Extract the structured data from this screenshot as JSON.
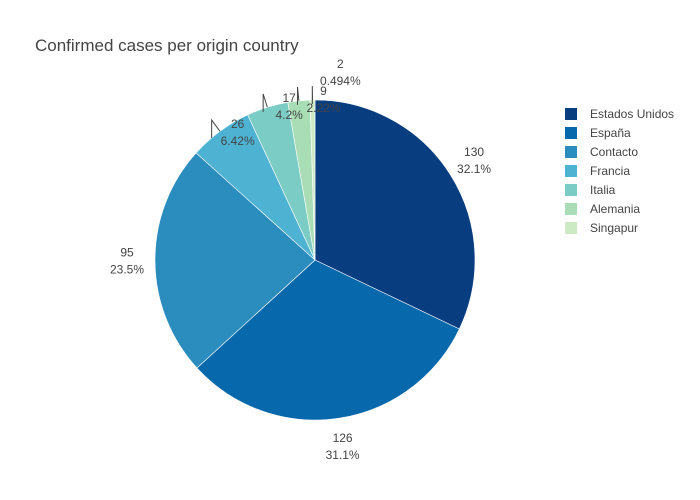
{
  "chart_data": {
    "type": "pie",
    "title": "Confirmed cases per origin country",
    "categories": [
      "Estados Unidos",
      "España",
      "Contacto",
      "Francia",
      "Italia",
      "Alemania",
      "Singapur"
    ],
    "values": [
      130,
      126,
      95,
      26,
      17,
      9,
      2
    ],
    "percent_labels": [
      "32.1%",
      "31.1%",
      "23.5%",
      "6.42%",
      "4.2%",
      "2.22%",
      "0.494%"
    ],
    "colors": [
      "#083d7f",
      "#0868ac",
      "#2b8cbe",
      "#4eb3d3",
      "#7bccc4",
      "#a8ddb5",
      "#ccebc5"
    ],
    "direction": "clockwise",
    "start_angle": "12 o'clock",
    "legend_position": "top-right",
    "text_info": "value+percent"
  }
}
